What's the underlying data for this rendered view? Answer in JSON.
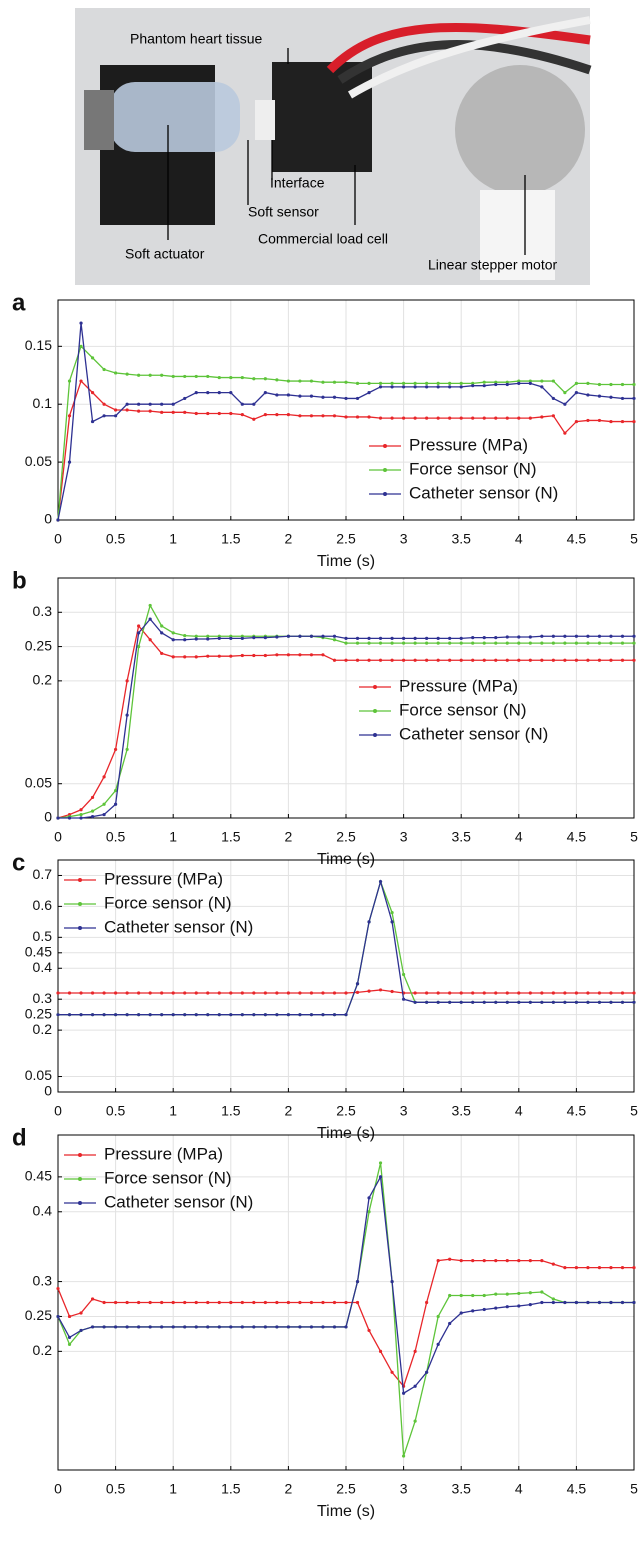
{
  "photo": {
    "labels": [
      "Phantom heart tissue",
      "Interface",
      "Soft sensor",
      "Commercial load cell",
      "Soft actuator",
      "Linear stepper motor"
    ]
  },
  "chart_data": [
    {
      "type": "line",
      "panel": "a",
      "xlabel": "Time (s)",
      "legend": "lower right",
      "xlim": [
        0,
        5
      ],
      "xticks": [
        0,
        0.5,
        1,
        1.5,
        2,
        2.5,
        3,
        3.5,
        4,
        4.5,
        5
      ],
      "ylim": [
        0,
        0.19
      ],
      "yticks": [
        0,
        0.05,
        0.1,
        0.15
      ],
      "grid": true,
      "x": [
        0,
        0.1,
        0.2,
        0.3,
        0.4,
        0.5,
        0.6,
        0.7,
        0.8,
        0.9,
        1,
        1.1,
        1.2,
        1.3,
        1.4,
        1.5,
        1.6,
        1.7,
        1.8,
        1.9,
        2,
        2.1,
        2.2,
        2.3,
        2.4,
        2.5,
        2.6,
        2.7,
        2.8,
        2.9,
        3,
        3.1,
        3.2,
        3.3,
        3.4,
        3.5,
        3.6,
        3.7,
        3.8,
        3.9,
        4,
        4.1,
        4.2,
        4.3,
        4.4,
        4.5,
        4.6,
        4.7,
        4.8,
        4.9,
        5
      ],
      "series": [
        {
          "name": "Pressure (MPa)",
          "color": "#e8262a",
          "values": [
            0,
            0.09,
            0.12,
            0.11,
            0.1,
            0.095,
            0.095,
            0.094,
            0.094,
            0.093,
            0.093,
            0.093,
            0.092,
            0.092,
            0.092,
            0.092,
            0.091,
            0.087,
            0.091,
            0.091,
            0.091,
            0.09,
            0.09,
            0.09,
            0.09,
            0.089,
            0.089,
            0.089,
            0.088,
            0.088,
            0.088,
            0.088,
            0.088,
            0.088,
            0.088,
            0.088,
            0.088,
            0.088,
            0.088,
            0.088,
            0.088,
            0.088,
            0.089,
            0.09,
            0.075,
            0.085,
            0.086,
            0.086,
            0.085,
            0.085,
            0.085
          ]
        },
        {
          "name": "Force sensor (N)",
          "color": "#5ec43a",
          "values": [
            0,
            0.12,
            0.15,
            0.14,
            0.13,
            0.127,
            0.126,
            0.125,
            0.125,
            0.125,
            0.124,
            0.124,
            0.124,
            0.124,
            0.123,
            0.123,
            0.123,
            0.122,
            0.122,
            0.121,
            0.12,
            0.12,
            0.12,
            0.119,
            0.119,
            0.119,
            0.118,
            0.118,
            0.118,
            0.118,
            0.118,
            0.118,
            0.118,
            0.118,
            0.118,
            0.118,
            0.118,
            0.119,
            0.119,
            0.119,
            0.12,
            0.12,
            0.12,
            0.12,
            0.11,
            0.118,
            0.118,
            0.117,
            0.117,
            0.117,
            0.117
          ]
        },
        {
          "name": "Catheter sensor (N)",
          "color": "#2e3192",
          "values": [
            0,
            0.05,
            0.17,
            0.085,
            0.09,
            0.09,
            0.1,
            0.1,
            0.1,
            0.1,
            0.1,
            0.105,
            0.11,
            0.11,
            0.11,
            0.11,
            0.1,
            0.1,
            0.11,
            0.108,
            0.108,
            0.107,
            0.107,
            0.106,
            0.106,
            0.105,
            0.105,
            0.11,
            0.115,
            0.115,
            0.115,
            0.115,
            0.115,
            0.115,
            0.115,
            0.115,
            0.116,
            0.116,
            0.117,
            0.117,
            0.118,
            0.118,
            0.115,
            0.105,
            0.1,
            0.11,
            0.108,
            0.107,
            0.106,
            0.105,
            0.105
          ]
        }
      ]
    },
    {
      "type": "line",
      "panel": "b",
      "xlabel": "Time (s)",
      "legend": "center right",
      "xlim": [
        0,
        5
      ],
      "xticks": [
        0,
        0.5,
        1,
        1.5,
        2,
        2.5,
        3,
        3.5,
        4,
        4.5,
        5
      ],
      "ylim": [
        0,
        0.35
      ],
      "yticks": [
        0,
        0.05,
        0.2,
        0.25,
        0.3
      ],
      "grid": true,
      "x": [
        0,
        0.1,
        0.2,
        0.3,
        0.4,
        0.5,
        0.6,
        0.7,
        0.8,
        0.9,
        1,
        1.1,
        1.2,
        1.3,
        1.4,
        1.5,
        1.6,
        1.7,
        1.8,
        1.9,
        2,
        2.1,
        2.2,
        2.3,
        2.4,
        2.5,
        2.6,
        2.7,
        2.8,
        2.9,
        3,
        3.1,
        3.2,
        3.3,
        3.4,
        3.5,
        3.6,
        3.7,
        3.8,
        3.9,
        4,
        4.1,
        4.2,
        4.3,
        4.4,
        4.5,
        4.6,
        4.7,
        4.8,
        4.9,
        5
      ],
      "series": [
        {
          "name": "Pressure (MPa)",
          "color": "#e8262a",
          "values": [
            0,
            0.005,
            0.012,
            0.03,
            0.06,
            0.1,
            0.2,
            0.28,
            0.26,
            0.24,
            0.235,
            0.235,
            0.235,
            0.236,
            0.236,
            0.236,
            0.237,
            0.237,
            0.237,
            0.238,
            0.238,
            0.238,
            0.238,
            0.238,
            0.23,
            0.23,
            0.23,
            0.23,
            0.23,
            0.23,
            0.23,
            0.23,
            0.23,
            0.23,
            0.23,
            0.23,
            0.23,
            0.23,
            0.23,
            0.23,
            0.23,
            0.23,
            0.23,
            0.23,
            0.23,
            0.23,
            0.23,
            0.23,
            0.23,
            0.23,
            0.23
          ]
        },
        {
          "name": "Force sensor (N)",
          "color": "#5ec43a",
          "values": [
            0,
            0.002,
            0.005,
            0.01,
            0.02,
            0.04,
            0.1,
            0.25,
            0.31,
            0.28,
            0.27,
            0.266,
            0.265,
            0.265,
            0.265,
            0.265,
            0.265,
            0.265,
            0.265,
            0.265,
            0.265,
            0.265,
            0.265,
            0.263,
            0.26,
            0.255,
            0.255,
            0.255,
            0.255,
            0.255,
            0.255,
            0.255,
            0.255,
            0.255,
            0.255,
            0.255,
            0.255,
            0.255,
            0.255,
            0.255,
            0.255,
            0.255,
            0.255,
            0.255,
            0.255,
            0.255,
            0.255,
            0.255,
            0.255,
            0.255,
            0.255
          ]
        },
        {
          "name": "Catheter sensor (N)",
          "color": "#2e3192",
          "values": [
            0,
            0,
            0,
            0.002,
            0.005,
            0.02,
            0.15,
            0.27,
            0.29,
            0.27,
            0.26,
            0.26,
            0.261,
            0.261,
            0.262,
            0.262,
            0.262,
            0.263,
            0.263,
            0.264,
            0.265,
            0.265,
            0.265,
            0.265,
            0.265,
            0.262,
            0.262,
            0.262,
            0.262,
            0.262,
            0.262,
            0.262,
            0.262,
            0.262,
            0.262,
            0.262,
            0.263,
            0.263,
            0.263,
            0.264,
            0.264,
            0.264,
            0.265,
            0.265,
            0.265,
            0.265,
            0.265,
            0.265,
            0.265,
            0.265,
            0.265
          ]
        }
      ]
    },
    {
      "type": "line",
      "panel": "c",
      "xlabel": "Time (s)",
      "legend": "upper left",
      "xlim": [
        0,
        5
      ],
      "xticks": [
        0,
        0.5,
        1,
        1.5,
        2,
        2.5,
        3,
        3.5,
        4,
        4.5,
        5
      ],
      "ylim": [
        0,
        0.75
      ],
      "yticks": [
        0,
        0.05,
        0.2,
        0.25,
        0.3,
        0.4,
        0.45,
        0.5,
        0.6,
        0.7
      ],
      "grid": true,
      "x": [
        0,
        0.1,
        0.2,
        0.3,
        0.4,
        0.5,
        0.6,
        0.7,
        0.8,
        0.9,
        1,
        1.1,
        1.2,
        1.3,
        1.4,
        1.5,
        1.6,
        1.7,
        1.8,
        1.9,
        2,
        2.1,
        2.2,
        2.3,
        2.4,
        2.5,
        2.6,
        2.7,
        2.8,
        2.9,
        3,
        3.1,
        3.2,
        3.3,
        3.4,
        3.5,
        3.6,
        3.7,
        3.8,
        3.9,
        4,
        4.1,
        4.2,
        4.3,
        4.4,
        4.5,
        4.6,
        4.7,
        4.8,
        4.9,
        5
      ],
      "series": [
        {
          "name": "Pressure (MPa)",
          "color": "#e8262a",
          "values": [
            0.32,
            0.32,
            0.32,
            0.32,
            0.32,
            0.32,
            0.32,
            0.32,
            0.32,
            0.32,
            0.32,
            0.32,
            0.32,
            0.32,
            0.32,
            0.32,
            0.32,
            0.32,
            0.32,
            0.32,
            0.32,
            0.32,
            0.32,
            0.32,
            0.32,
            0.32,
            0.322,
            0.326,
            0.33,
            0.325,
            0.32,
            0.32,
            0.32,
            0.32,
            0.32,
            0.32,
            0.32,
            0.32,
            0.32,
            0.32,
            0.32,
            0.32,
            0.32,
            0.32,
            0.32,
            0.32,
            0.32,
            0.32,
            0.32,
            0.32,
            0.32
          ]
        },
        {
          "name": "Force sensor (N)",
          "color": "#5ec43a",
          "values": [
            0.25,
            0.25,
            0.25,
            0.25,
            0.25,
            0.25,
            0.25,
            0.25,
            0.25,
            0.25,
            0.25,
            0.25,
            0.25,
            0.25,
            0.25,
            0.25,
            0.25,
            0.25,
            0.25,
            0.25,
            0.25,
            0.25,
            0.25,
            0.25,
            0.25,
            0.25,
            0.35,
            0.55,
            0.68,
            0.58,
            0.38,
            0.29,
            0.29,
            0.29,
            0.29,
            0.29,
            0.29,
            0.29,
            0.29,
            0.29,
            0.29,
            0.29,
            0.29,
            0.29,
            0.29,
            0.29,
            0.29,
            0.29,
            0.29,
            0.29,
            0.29
          ]
        },
        {
          "name": "Catheter sensor (N)",
          "color": "#2e3192",
          "values": [
            0.25,
            0.25,
            0.25,
            0.25,
            0.25,
            0.25,
            0.25,
            0.25,
            0.25,
            0.25,
            0.25,
            0.25,
            0.25,
            0.25,
            0.25,
            0.25,
            0.25,
            0.25,
            0.25,
            0.25,
            0.25,
            0.25,
            0.25,
            0.25,
            0.25,
            0.25,
            0.35,
            0.55,
            0.68,
            0.55,
            0.3,
            0.29,
            0.29,
            0.29,
            0.29,
            0.29,
            0.29,
            0.29,
            0.29,
            0.29,
            0.29,
            0.29,
            0.29,
            0.29,
            0.29,
            0.29,
            0.29,
            0.29,
            0.29,
            0.29,
            0.29
          ]
        }
      ]
    },
    {
      "type": "line",
      "panel": "d",
      "xlabel": "Time (s)",
      "legend": "upper left",
      "xlim": [
        0,
        5
      ],
      "xticks": [
        0,
        0.5,
        1,
        1.5,
        2,
        2.5,
        3,
        3.5,
        4,
        4.5,
        5
      ],
      "ylim": [
        0.03,
        0.51
      ],
      "yticks": [
        0.2,
        0.25,
        0.3,
        0.4,
        0.45
      ],
      "grid": true,
      "x": [
        0,
        0.1,
        0.2,
        0.3,
        0.4,
        0.5,
        0.6,
        0.7,
        0.8,
        0.9,
        1,
        1.1,
        1.2,
        1.3,
        1.4,
        1.5,
        1.6,
        1.7,
        1.8,
        1.9,
        2,
        2.1,
        2.2,
        2.3,
        2.4,
        2.5,
        2.6,
        2.7,
        2.8,
        2.9,
        3,
        3.1,
        3.2,
        3.3,
        3.4,
        3.5,
        3.6,
        3.7,
        3.8,
        3.9,
        4,
        4.1,
        4.2,
        4.3,
        4.4,
        4.5,
        4.6,
        4.7,
        4.8,
        4.9,
        5
      ],
      "series": [
        {
          "name": "Pressure (MPa)",
          "color": "#e8262a",
          "values": [
            0.29,
            0.25,
            0.255,
            0.275,
            0.27,
            0.27,
            0.27,
            0.27,
            0.27,
            0.27,
            0.27,
            0.27,
            0.27,
            0.27,
            0.27,
            0.27,
            0.27,
            0.27,
            0.27,
            0.27,
            0.27,
            0.27,
            0.27,
            0.27,
            0.27,
            0.27,
            0.27,
            0.23,
            0.2,
            0.17,
            0.15,
            0.2,
            0.27,
            0.33,
            0.332,
            0.33,
            0.33,
            0.33,
            0.33,
            0.33,
            0.33,
            0.33,
            0.33,
            0.325,
            0.32,
            0.32,
            0.32,
            0.32,
            0.32,
            0.32,
            0.32
          ]
        },
        {
          "name": "Force sensor (N)",
          "color": "#5ec43a",
          "values": [
            0.25,
            0.21,
            0.23,
            0.235,
            0.235,
            0.235,
            0.235,
            0.235,
            0.235,
            0.235,
            0.235,
            0.235,
            0.235,
            0.235,
            0.235,
            0.235,
            0.235,
            0.235,
            0.235,
            0.235,
            0.235,
            0.235,
            0.235,
            0.235,
            0.235,
            0.235,
            0.3,
            0.4,
            0.47,
            0.3,
            0.05,
            0.1,
            0.17,
            0.25,
            0.28,
            0.28,
            0.28,
            0.28,
            0.282,
            0.282,
            0.283,
            0.284,
            0.285,
            0.275,
            0.27,
            0.27,
            0.27,
            0.27,
            0.27,
            0.27,
            0.27
          ]
        },
        {
          "name": "Catheter sensor (N)",
          "color": "#2e3192",
          "values": [
            0.25,
            0.22,
            0.23,
            0.235,
            0.235,
            0.235,
            0.235,
            0.235,
            0.235,
            0.235,
            0.235,
            0.235,
            0.235,
            0.235,
            0.235,
            0.235,
            0.235,
            0.235,
            0.235,
            0.235,
            0.235,
            0.235,
            0.235,
            0.235,
            0.235,
            0.235,
            0.3,
            0.42,
            0.45,
            0.3,
            0.14,
            0.15,
            0.17,
            0.21,
            0.24,
            0.255,
            0.258,
            0.26,
            0.262,
            0.264,
            0.265,
            0.267,
            0.27,
            0.27,
            0.27,
            0.27,
            0.27,
            0.27,
            0.27,
            0.27,
            0.27
          ]
        }
      ]
    }
  ]
}
